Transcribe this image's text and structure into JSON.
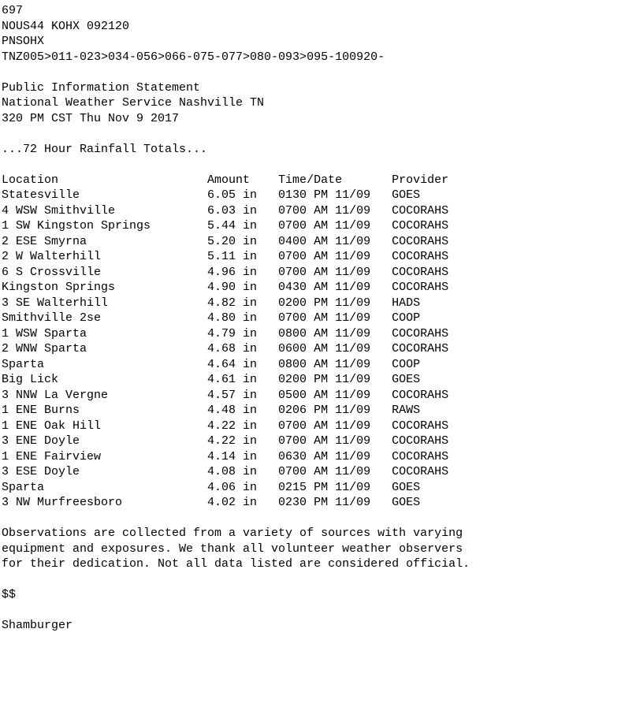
{
  "header": {
    "seq": "697",
    "wmo": "NOUS44 KOHX 092120",
    "pil": "PNSOHX",
    "ugc": "TNZ005>011-023>034-056>066-075-077>080-093>095-100920-",
    "title": "Public Information Statement",
    "office": "National Weather Service Nashville TN",
    "issued": "320 PM CST Thu Nov 9 2017",
    "headline": "...72 Hour Rainfall Totals..."
  },
  "columns": {
    "c1": "Location",
    "c2": "Amount",
    "c3": "Time/Date",
    "c4": "Provider"
  },
  "rows": [
    {
      "loc": "Statesville",
      "amt": "6.05 in",
      "td": "0130 PM 11/09",
      "prov": "GOES"
    },
    {
      "loc": "4 WSW Smithville",
      "amt": "6.03 in",
      "td": "0700 AM 11/09",
      "prov": "COCORAHS"
    },
    {
      "loc": "1 SW Kingston Springs",
      "amt": "5.44 in",
      "td": "0700 AM 11/09",
      "prov": "COCORAHS"
    },
    {
      "loc": "2 ESE Smyrna",
      "amt": "5.20 in",
      "td": "0400 AM 11/09",
      "prov": "COCORAHS"
    },
    {
      "loc": "2 W Walterhill",
      "amt": "5.11 in",
      "td": "0700 AM 11/09",
      "prov": "COCORAHS"
    },
    {
      "loc": "6 S Crossville",
      "amt": "4.96 in",
      "td": "0700 AM 11/09",
      "prov": "COCORAHS"
    },
    {
      "loc": "Kingston Springs",
      "amt": "4.90 in",
      "td": "0430 AM 11/09",
      "prov": "COCORAHS"
    },
    {
      "loc": "3 SE Walterhill",
      "amt": "4.82 in",
      "td": "0200 PM 11/09",
      "prov": "HADS"
    },
    {
      "loc": "Smithville 2se",
      "amt": "4.80 in",
      "td": "0700 AM 11/09",
      "prov": "COOP"
    },
    {
      "loc": "1 WSW Sparta",
      "amt": "4.79 in",
      "td": "0800 AM 11/09",
      "prov": "COCORAHS"
    },
    {
      "loc": "2 WNW Sparta",
      "amt": "4.68 in",
      "td": "0600 AM 11/09",
      "prov": "COCORAHS"
    },
    {
      "loc": "Sparta",
      "amt": "4.64 in",
      "td": "0800 AM 11/09",
      "prov": "COOP"
    },
    {
      "loc": "Big Lick",
      "amt": "4.61 in",
      "td": "0200 PM 11/09",
      "prov": "GOES"
    },
    {
      "loc": "3 NNW La Vergne",
      "amt": "4.57 in",
      "td": "0500 AM 11/09",
      "prov": "COCORAHS"
    },
    {
      "loc": "1 ENE Burns",
      "amt": "4.48 in",
      "td": "0206 PM 11/09",
      "prov": "RAWS"
    },
    {
      "loc": "1 ENE Oak Hill",
      "amt": "4.22 in",
      "td": "0700 AM 11/09",
      "prov": "COCORAHS"
    },
    {
      "loc": "3 ENE Doyle",
      "amt": "4.22 in",
      "td": "0700 AM 11/09",
      "prov": "COCORAHS"
    },
    {
      "loc": "1 ENE Fairview",
      "amt": "4.14 in",
      "td": "0630 AM 11/09",
      "prov": "COCORAHS"
    },
    {
      "loc": "3 ESE Doyle",
      "amt": "4.08 in",
      "td": "0700 AM 11/09",
      "prov": "COCORAHS"
    },
    {
      "loc": "Sparta",
      "amt": "4.06 in",
      "td": "0215 PM 11/09",
      "prov": "GOES"
    },
    {
      "loc": "3 NW Murfreesboro",
      "amt": "4.02 in",
      "td": "0230 PM 11/09",
      "prov": "GOES"
    }
  ],
  "footer": {
    "l1": "Observations are collected from a variety of sources with varying",
    "l2": "equipment and exposures. We thank all volunteer weather observers",
    "l3": "for their dedication. Not all data listed are considered official.",
    "end": "$$",
    "author": "Shamburger"
  },
  "layout": {
    "loc_w": 29,
    "amt_w": 10,
    "td_w": 16
  }
}
